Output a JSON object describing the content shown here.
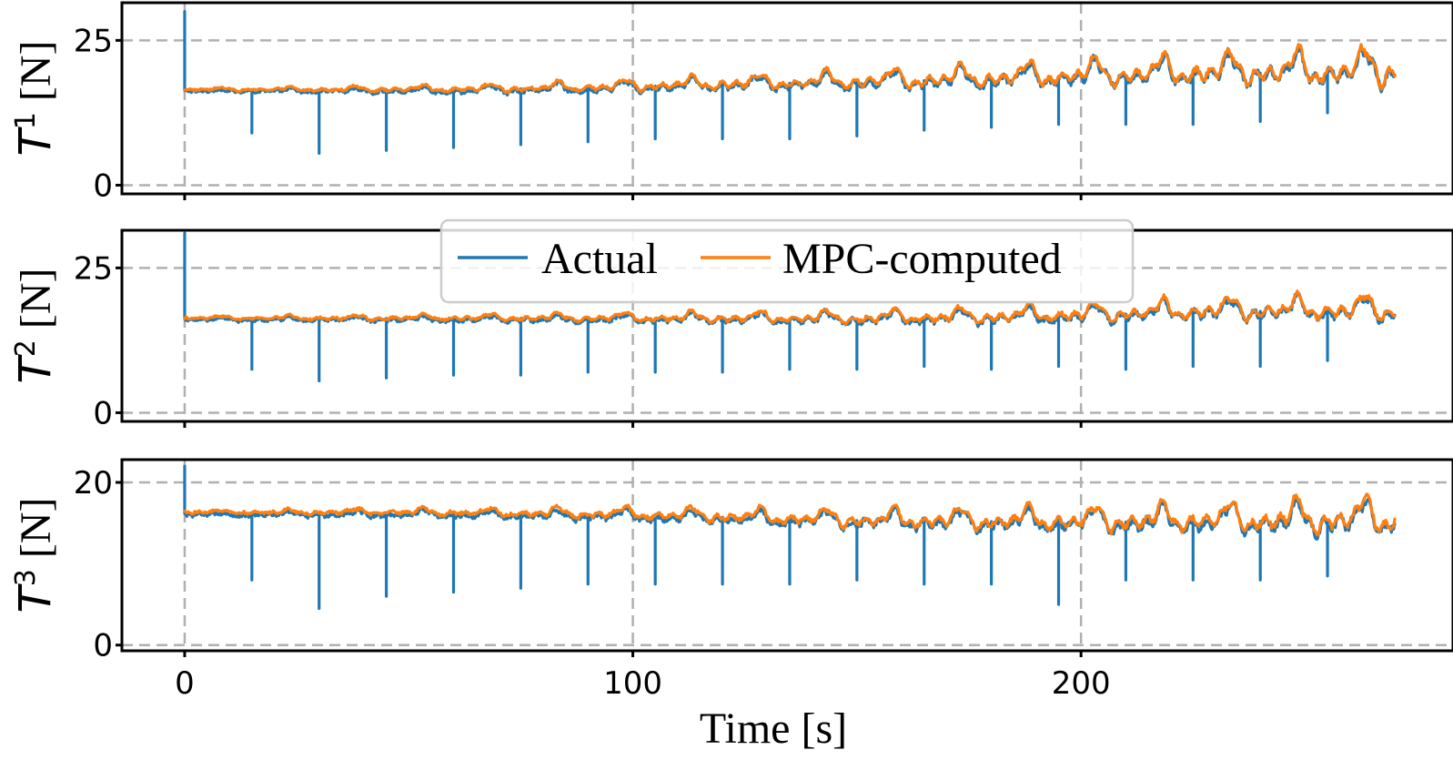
{
  "chart_data": {
    "type": "line",
    "xlabel": "Time [s]",
    "xlim": [
      -14,
      283
    ],
    "xticks": [
      0,
      100,
      200
    ],
    "xtick_labels": [
      "0",
      "100",
      "200"
    ],
    "grid": true,
    "legend": {
      "placement": "top-center of middle panel",
      "entries": [
        "Actual",
        "MPC-computed"
      ]
    },
    "colors": {
      "Actual": "#1f77b4",
      "MPC-computed": "#ff7f0e",
      "grid": "#b0b0b0"
    },
    "panels": [
      {
        "ylabel_base": "T",
        "ylabel_sup": "1",
        "ylabel_unit": " [N]",
        "ylim": [
          -1.5,
          31.5
        ],
        "yticks": [
          0,
          25
        ],
        "ytick_labels": [
          "0",
          "25"
        ],
        "series": [
          {
            "name": "Actual",
            "x": [
              0,
              30,
              60,
              90,
              100,
              120,
              150,
              180,
              200,
              230,
              270
            ],
            "y": [
              16.5,
              16.5,
              16.5,
              16.8,
              17.0,
              17.4,
              17.8,
              18.3,
              18.8,
              19.3,
              19.5
            ],
            "oscillation_amplitude_range": [
              0.3,
              4.5
            ],
            "spike_times": [
              0,
              15,
              30,
              45,
              60,
              75,
              90,
              105,
              120,
              135,
              150,
              165,
              180,
              195,
              210,
              225,
              240,
              255
            ],
            "spike_values": [
              30,
              9,
              5.5,
              6,
              6.5,
              7,
              7.5,
              8,
              8,
              8,
              8.5,
              9.5,
              10,
              10.5,
              10.5,
              10.5,
              11,
              12.5
            ]
          },
          {
            "name": "MPC-computed",
            "x": [
              0,
              30,
              60,
              90,
              100,
              120,
              150,
              180,
              200,
              230,
              270
            ],
            "y": [
              16.5,
              16.5,
              16.5,
              16.8,
              17.0,
              17.4,
              17.8,
              18.3,
              18.8,
              19.3,
              19.5
            ],
            "oscillation_amplitude_range": [
              0.3,
              4.5
            ]
          }
        ]
      },
      {
        "ylabel_base": "T",
        "ylabel_sup": "2",
        "ylabel_unit": " [N]",
        "ylim": [
          -1.5,
          31.5
        ],
        "yticks": [
          0,
          25
        ],
        "ytick_labels": [
          "0",
          "25"
        ],
        "series": [
          {
            "name": "Actual",
            "x": [
              0,
              50,
              100,
              150,
              180,
              200,
              230,
              270
            ],
            "y": [
              16.3,
              16.3,
              16.3,
              16.2,
              16.5,
              16.8,
              17.5,
              17.5
            ],
            "oscillation_amplitude_range": [
              0.4,
              3.0
            ],
            "spike_times": [
              0,
              15,
              30,
              45,
              60,
              75,
              90,
              105,
              120,
              135,
              150,
              165,
              180,
              195,
              210,
              225,
              240,
              255
            ],
            "spike_values": [
              31,
              7.5,
              5.5,
              6,
              6.5,
              6.5,
              7,
              7,
              7,
              7.5,
              7.5,
              8,
              7.5,
              8,
              7.5,
              8,
              8,
              9
            ]
          },
          {
            "name": "MPC-computed",
            "x": [
              0,
              50,
              100,
              150,
              180,
              200,
              230,
              270
            ],
            "y": [
              16.3,
              16.3,
              16.3,
              16.2,
              16.5,
              16.8,
              17.5,
              17.5
            ],
            "oscillation_amplitude_range": [
              0.4,
              3.0
            ]
          }
        ]
      },
      {
        "ylabel_base": "T",
        "ylabel_sup": "3",
        "ylabel_unit": " [N]",
        "ylim": [
          -0.7,
          22.8
        ],
        "yticks": [
          0,
          20
        ],
        "ytick_labels": [
          "0",
          "20"
        ],
        "series": [
          {
            "name": "Actual",
            "x": [
              0,
              50,
              100,
              150,
              200,
              270
            ],
            "y": [
              16.3,
              16.3,
              16.0,
              15.3,
              15.1,
              15.3
            ],
            "oscillation_amplitude_range": [
              0.3,
              3.0
            ],
            "spike_times": [
              0,
              15,
              30,
              45,
              60,
              75,
              90,
              105,
              120,
              135,
              150,
              165,
              180,
              195,
              210,
              225,
              240,
              255
            ],
            "spike_values": [
              22,
              8,
              4.5,
              6,
              6.5,
              7,
              7.5,
              7.5,
              7.5,
              7.5,
              8,
              7.5,
              7.5,
              5,
              8,
              8,
              8,
              8.5
            ]
          },
          {
            "name": "MPC-computed",
            "x": [
              0,
              50,
              100,
              150,
              200,
              270
            ],
            "y": [
              16.3,
              16.3,
              16.0,
              15.3,
              15.1,
              15.3
            ],
            "oscillation_amplitude_range": [
              0.3,
              3.0
            ]
          }
        ]
      }
    ]
  }
}
